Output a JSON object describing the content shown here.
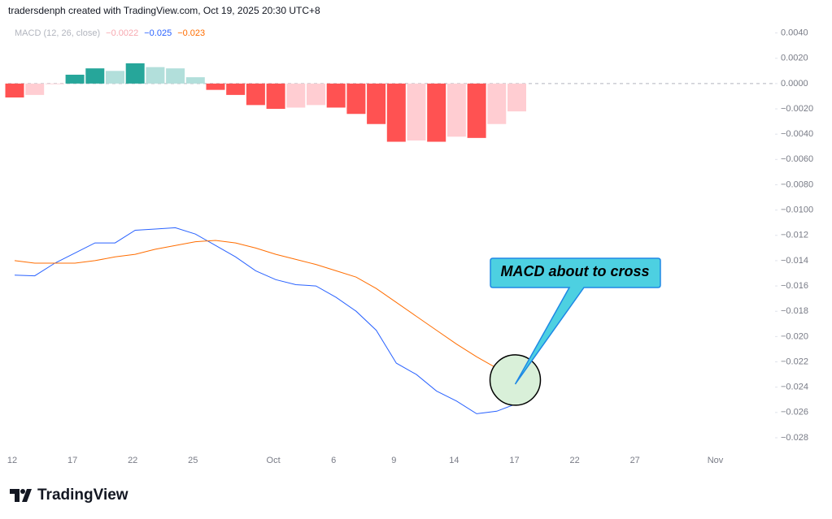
{
  "header": "tradersdenph created with TradingView.com, Oct 19, 2025 20:30 UTC+8",
  "chart_data": {
    "type": "combo",
    "title": "MACD (12, 26, close)",
    "categories": [
      "12",
      null,
      null,
      "17",
      null,
      null,
      "22",
      null,
      null,
      "25",
      null,
      null,
      null,
      "Oct",
      null,
      null,
      "6",
      null,
      null,
      "9",
      null,
      null,
      "14",
      null,
      null,
      "17",
      null,
      null,
      "22",
      null,
      null,
      "27",
      null,
      null,
      null,
      "Nov"
    ],
    "series": [
      {
        "type": "bar",
        "last_label": "−0.0022",
        "color": "#f7a8b0",
        "colors": [
          "#ff5252",
          "#ffcdd2",
          "#ffcdd2",
          "#26a69a",
          "#26a69a",
          "#b2dfdb",
          "#26a69a",
          "#b2dfdb",
          "#b2dfdb",
          "#b2dfdb",
          "#ff5252",
          "#ff5252",
          "#ff5252",
          "#ff5252",
          "#ffcdd2",
          "#ffcdd2",
          "#ff5252",
          "#ff5252",
          "#ff5252",
          "#ff5252",
          "#ffcdd2",
          "#ff5252",
          "#ffcdd2",
          "#ff5252",
          "#ffcdd2",
          "#ffcdd2",
          null,
          null,
          null,
          null,
          null,
          null,
          null,
          null,
          null,
          null
        ],
        "values": [
          -0.0011,
          -0.0009,
          -5e-05,
          0.0007,
          0.0012,
          0.001,
          0.0016,
          0.0013,
          0.0012,
          0.0005,
          -0.0005,
          -0.0009,
          -0.0017,
          -0.002,
          -0.0019,
          -0.0017,
          -0.0019,
          -0.0024,
          -0.0032,
          -0.0046,
          -0.0045,
          -0.0046,
          -0.0042,
          -0.0043,
          -0.0032,
          -0.0022,
          null,
          null,
          null,
          null,
          null,
          null,
          null,
          null,
          null,
          null
        ]
      },
      {
        "type": "line",
        "last_label": "−0.025",
        "color": "#2962ff",
        "values": [
          -0.01515,
          -0.0152,
          -0.0142,
          -0.0134,
          -0.0126,
          -0.0126,
          -0.0116,
          -0.0115,
          -0.0114,
          -0.0119,
          -0.0128,
          -0.0137,
          -0.0148,
          -0.0155,
          -0.0159,
          -0.016,
          -0.0169,
          -0.018,
          -0.0195,
          -0.0221,
          -0.023,
          -0.0243,
          -0.0251,
          -0.0261,
          -0.0259,
          -0.0253,
          null,
          null,
          null,
          null,
          null,
          null,
          null,
          null,
          null,
          null
        ]
      },
      {
        "type": "line",
        "last_label": "−0.023",
        "color": "#ff6d00",
        "values": [
          -0.014,
          -0.0142,
          -0.0142,
          -0.0142,
          -0.014,
          -0.0137,
          -0.0135,
          -0.0131,
          -0.0128,
          -0.0125,
          -0.0124,
          -0.0126,
          -0.013,
          -0.0135,
          -0.0139,
          -0.0143,
          -0.0148,
          -0.0153,
          -0.0162,
          -0.0173,
          -0.0184,
          -0.0195,
          -0.0206,
          -0.0216,
          -0.0225,
          -0.0232,
          null,
          null,
          null,
          null,
          null,
          null,
          null,
          null,
          null,
          null
        ]
      }
    ],
    "ylim": [
      -0.0289,
      0.005
    ],
    "yticks": [
      {
        "value": 0.004,
        "label": "0.0040"
      },
      {
        "value": 0.002,
        "label": "0.0020"
      },
      {
        "value": 0,
        "label": "0.0000"
      },
      {
        "value": -0.002,
        "label": "−0.0020"
      },
      {
        "value": -0.004,
        "label": "−0.0040"
      },
      {
        "value": -0.006,
        "label": "−0.0060"
      },
      {
        "value": -0.008,
        "label": "−0.0080"
      },
      {
        "value": -0.01,
        "label": "−0.0100"
      },
      {
        "value": -0.012,
        "label": "−0.012"
      },
      {
        "value": -0.014,
        "label": "−0.014"
      },
      {
        "value": -0.016,
        "label": "−0.016"
      },
      {
        "value": -0.018,
        "label": "−0.018"
      },
      {
        "value": -0.02,
        "label": "−0.020"
      },
      {
        "value": -0.022,
        "label": "−0.022"
      },
      {
        "value": -0.024,
        "label": "−0.024"
      },
      {
        "value": -0.026,
        "label": "−0.026"
      },
      {
        "value": -0.028,
        "label": "−0.028"
      }
    ],
    "grid": false,
    "annotation": "MACD about to cross"
  },
  "footer": "TradingView"
}
